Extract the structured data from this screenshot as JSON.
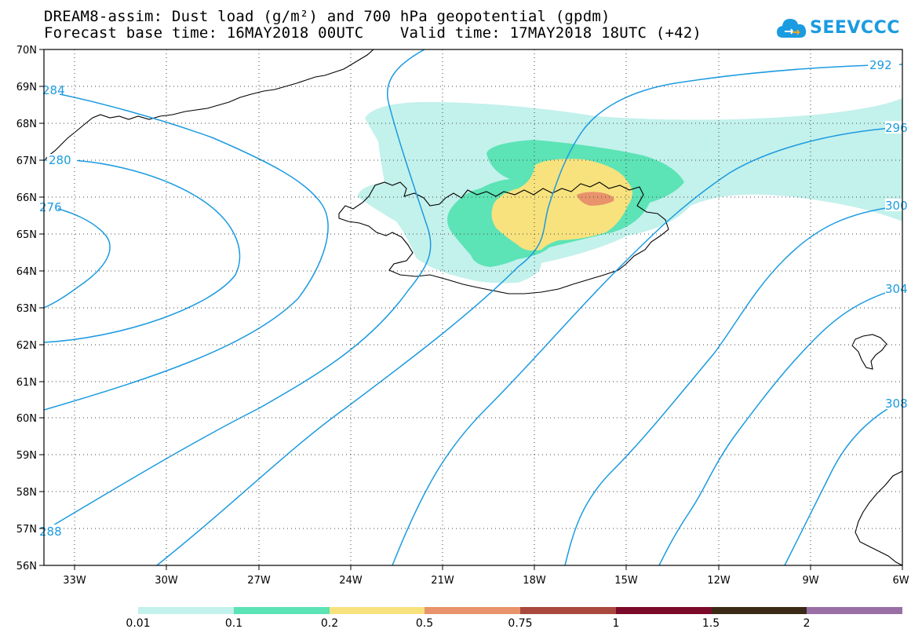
{
  "header": {
    "line1": "DREAM8-assim: Dust load (g/m²) and 700 hPa geopotential (gpdm)",
    "line2": "Forecast base time: 16MAY2018 00UTC    Valid time: 17MAY2018 18UTC (+42)"
  },
  "logo": {
    "text": "SEEVCCC",
    "icon": "cloud-icon",
    "color": "#1b9be0"
  },
  "map": {
    "lat_labels": [
      "70N",
      "69N",
      "68N",
      "67N",
      "66N",
      "65N",
      "64N",
      "63N",
      "62N",
      "61N",
      "60N",
      "59N",
      "58N",
      "57N",
      "56N"
    ],
    "lon_labels": [
      "33W",
      "30W",
      "27W",
      "24W",
      "21W",
      "18W",
      "15W",
      "12W",
      "9W",
      "6W"
    ],
    "isoline_labels": [
      "284",
      "280",
      "276",
      "288",
      "292",
      "296",
      "300",
      "304",
      "308"
    ],
    "isoline_color": "#1b9be0",
    "coastline_color": "#000000"
  },
  "legend": {
    "colors": [
      "#c3f1ec",
      "#5ce3b6",
      "#f7e27e",
      "#e8936b",
      "#a9483d",
      "#7b0a2a",
      "#3a2a15",
      "#9a6fa6"
    ],
    "labels": [
      "0.01",
      "0.1",
      "0.2",
      "0.5",
      "0.75",
      "1",
      "1.5",
      "2"
    ]
  }
}
